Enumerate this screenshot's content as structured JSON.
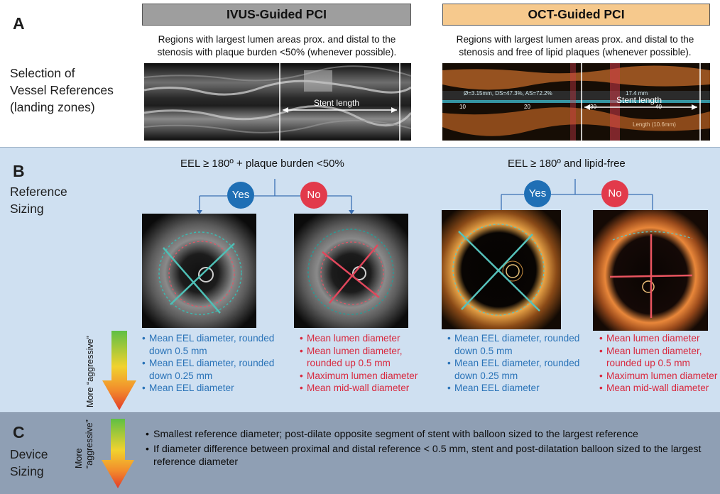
{
  "panel_a": {
    "letter": "A",
    "title_lines": [
      "Selection of",
      "Vessel References",
      "(landing zones)"
    ],
    "ivus_header": "IVUS-Guided PCI",
    "oct_header": "OCT-Guided PCI",
    "ivus_desc_lines": [
      "Regions with largest lumen areas prox. and distal to the",
      "stenosis with plaque burden <50% (whenever possible)."
    ],
    "oct_desc_lines": [
      "Regions with largest lumen areas prox. and distal to the",
      "stenosis and free of lipid plaques (whenever possible)."
    ],
    "ivus_strip_label": "Stent length",
    "oct_strip_label": "Stent length",
    "oct_strip_info": "Ø=3.15mm, DS=47.3%, AS=72.2%",
    "oct_strip_len": "17.4 mm",
    "oct_strip_ticks": [
      "10",
      "20",
      "30",
      "40"
    ],
    "oct_strip_bottom": "Length (10.6mm)",
    "ivus_header_color": "#9e9e9e",
    "oct_header_color": "#f6c98d"
  },
  "panel_b": {
    "letter": "B",
    "title_lines": [
      "Reference",
      "Sizing"
    ],
    "ivus_criteria": "EEL ≥ 180º + plaque burden <50%",
    "oct_criteria": "EEL ≥ 180º and lipid-free",
    "yes_label": "Yes",
    "no_label": "No",
    "ivus_yes_items": [
      "Mean EEL diameter, rounded down 0.5 mm",
      "Mean EEL diameter, rounded down 0.25 mm",
      "Mean EEL diameter"
    ],
    "ivus_no_items": [
      "Mean lumen diameter",
      "Mean lumen diameter, rounded up 0.5 mm",
      "Maximum lumen diameter",
      "Mean mid-wall diameter"
    ],
    "oct_yes_items": [
      "Mean EEL diameter, rounded down 0.5 mm",
      "Mean EEL diameter, rounded down 0.25 mm",
      "Mean EEL diameter"
    ],
    "oct_no_items": [
      "Mean lumen diameter",
      "Mean lumen diameter, rounded up 0.5 mm",
      "Maximum lumen diameter",
      "Mean mid-wall diameter"
    ],
    "aggressive_label": "More “aggressive”",
    "colors": {
      "background": "#cfe0f1",
      "yes": "#1f6fb5",
      "no": "#e23a4b",
      "eel_text": "#2a73b8",
      "lumen_text": "#d8283e"
    }
  },
  "panel_c": {
    "letter": "C",
    "title_lines": [
      "Device",
      "Sizing"
    ],
    "aggressive_label_lines": [
      "More",
      "“aggressive”"
    ],
    "items": [
      "Smallest reference diameter; post-dilate opposite segment of stent with balloon sized to the largest reference",
      "If diameter difference between proximal and distal reference < 0.5 mm, stent and post-dilatation balloon sized to the largest reference diameter"
    ],
    "background": "#8f9fb4"
  }
}
